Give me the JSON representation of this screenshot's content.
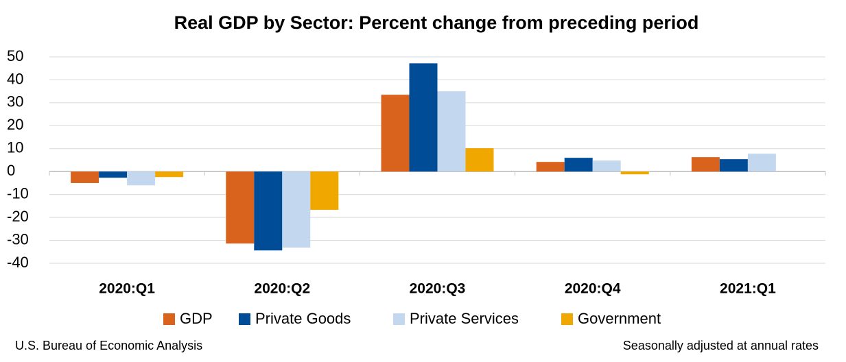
{
  "chart_data": {
    "type": "bar",
    "title": "Real GDP by Sector:  Percent change from preceding period",
    "categories": [
      "2020:Q1",
      "2020:Q2",
      "2020:Q3",
      "2020:Q4",
      "2021:Q1"
    ],
    "series": [
      {
        "name": "GDP",
        "color": "#d9621c",
        "values": [
          -5.0,
          -31.4,
          33.5,
          4.2,
          6.3
        ]
      },
      {
        "name": "Private Goods",
        "color": "#004c97",
        "values": [
          -2.7,
          -34.4,
          47.2,
          6.0,
          5.4
        ]
      },
      {
        "name": "Private Services",
        "color": "#c3d8ef",
        "values": [
          -6.0,
          -33.2,
          35.0,
          4.8,
          7.8
        ]
      },
      {
        "name": "Government",
        "color": "#f0a800",
        "values": [
          -2.4,
          -16.7,
          10.2,
          -1.2,
          0.0
        ]
      }
    ],
    "ylim": [
      -40,
      50
    ],
    "yticks": [
      -40,
      -30,
      -20,
      -10,
      0,
      10,
      20,
      30,
      40,
      50
    ],
    "grid": true,
    "legend": "bottom",
    "source": "U.S. Bureau of Economic Analysis",
    "note": "Seasonally adjusted at annual rates"
  }
}
